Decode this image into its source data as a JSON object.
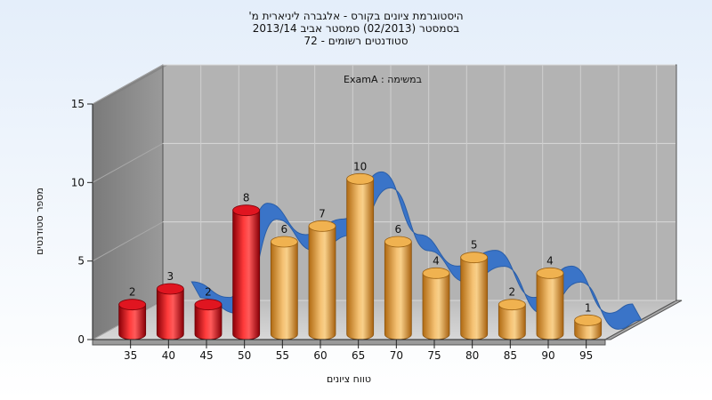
{
  "chart_data": {
    "type": "bar",
    "title_lines": [
      "היסטוגרמת ציונים בקורס - אלגברה ליניארית מ'",
      "בסמסטר  (02/2013)  סמסטר אביב 2013/14",
      "סטודנטים רשומים - 72"
    ],
    "legend_label": "במשימה : ExamA",
    "xlabel": "טווח ציונים",
    "ylabel": "מספר סטודנטים",
    "categories": [
      "35",
      "40",
      "45",
      "50",
      "55",
      "60",
      "65",
      "70",
      "75",
      "80",
      "85",
      "90",
      "95"
    ],
    "values": [
      2,
      3,
      2,
      8,
      6,
      7,
      10,
      6,
      4,
      5,
      2,
      4,
      1
    ],
    "bar_colors": [
      "red",
      "red",
      "red",
      "red",
      "orange",
      "orange",
      "orange",
      "orange",
      "orange",
      "orange",
      "orange",
      "orange",
      "orange"
    ],
    "y_ticks": [
      0,
      5,
      10,
      15
    ],
    "ylim": [
      0,
      15
    ],
    "grid": true,
    "trend_ribbon": true,
    "colors": {
      "red": "#e8121e",
      "orange": "#e6a23c",
      "ribbon": "#3a74c8",
      "plot_back": "#b3b3b3",
      "side_wall": "#868686",
      "floor": "#c9c9c9"
    }
  }
}
